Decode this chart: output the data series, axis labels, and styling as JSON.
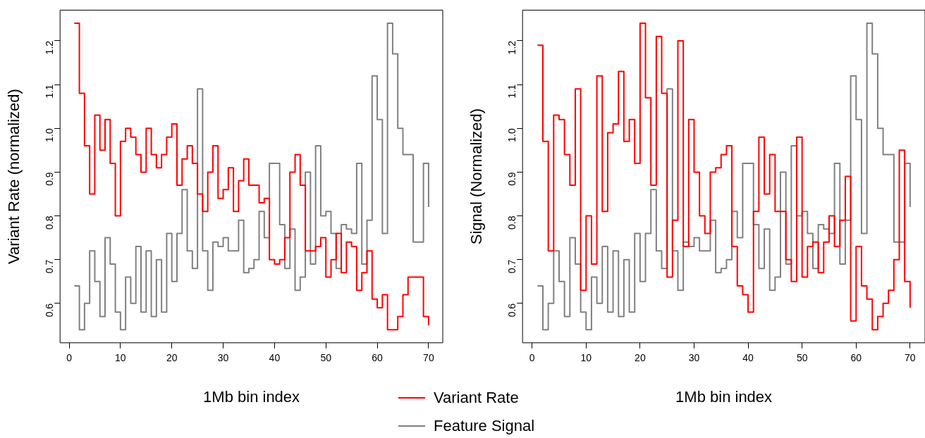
{
  "chart_data": [
    {
      "type": "step",
      "xlabel": "1Mb bin index",
      "ylabel": "Variant Rate (normalized)",
      "legend": "bottom",
      "grid": false,
      "x": [
        1,
        2,
        3,
        4,
        5,
        6,
        7,
        8,
        9,
        10,
        11,
        12,
        13,
        14,
        15,
        16,
        17,
        18,
        19,
        20,
        21,
        22,
        23,
        24,
        25,
        26,
        27,
        28,
        29,
        30,
        31,
        32,
        33,
        34,
        35,
        36,
        37,
        38,
        39,
        40,
        41,
        42,
        43,
        44,
        45,
        46,
        47,
        48,
        49,
        50,
        51,
        52,
        53,
        54,
        55,
        56,
        57,
        58,
        59,
        60,
        61,
        62,
        63,
        64,
        65,
        66,
        67,
        68,
        69,
        70
      ],
      "xlim": [
        -1.76,
        72.76
      ],
      "xticks": [
        0,
        10,
        20,
        30,
        40,
        50,
        60,
        70
      ],
      "ylim": [
        0.51,
        1.27
      ],
      "yticks": [
        0.6,
        0.7,
        0.8,
        0.9,
        {
          "value": 1,
          "label": "1.0"
        },
        1.1,
        1.2
      ],
      "series": [
        {
          "name": "Variant Rate",
          "color": "#ff0000",
          "values": [
            1.24,
            1.08,
            0.96,
            0.85,
            1.03,
            0.95,
            1.02,
            0.92,
            0.8,
            0.97,
            1.0,
            0.98,
            0.94,
            0.9,
            1.0,
            0.94,
            0.91,
            0.94,
            0.98,
            1.01,
            0.87,
            0.93,
            0.96,
            0.92,
            0.85,
            0.81,
            0.9,
            0.96,
            0.84,
            0.86,
            0.91,
            0.81,
            0.88,
            0.93,
            0.87,
            0.87,
            0.83,
            0.84,
            0.7,
            0.69,
            0.7,
            0.75,
            0.9,
            0.94,
            0.87,
            0.72,
            0.72,
            0.73,
            0.75,
            0.66,
            0.7,
            0.76,
            0.67,
            0.74,
            0.73,
            0.63,
            0.67,
            0.72,
            0.61,
            0.59,
            0.62,
            0.54,
            0.54,
            0.57,
            0.62,
            0.66,
            0.66,
            0.66,
            0.57,
            0.55
          ]
        },
        {
          "name": "Feature Signal",
          "color": "#808080",
          "values": [
            0.64,
            0.54,
            0.6,
            0.72,
            0.65,
            0.57,
            0.75,
            0.69,
            0.58,
            0.54,
            0.66,
            0.6,
            0.73,
            0.58,
            0.72,
            0.57,
            0.7,
            0.58,
            0.76,
            0.65,
            0.76,
            0.86,
            0.72,
            0.68,
            1.09,
            0.72,
            0.63,
            0.74,
            0.73,
            0.75,
            0.72,
            0.72,
            0.79,
            0.67,
            0.68,
            0.7,
            0.81,
            0.75,
            0.92,
            0.92,
            0.78,
            0.68,
            0.77,
            0.63,
            0.66,
            0.9,
            0.69,
            0.96,
            0.8,
            0.81,
            0.76,
            0.68,
            0.78,
            0.77,
            0.76,
            0.92,
            0.69,
            0.79,
            1.12,
            1.02,
            0.76,
            1.24,
            1.17,
            1.0,
            0.94,
            0.94,
            0.74,
            0.74,
            0.92,
            0.82
          ]
        }
      ]
    },
    {
      "type": "step",
      "xlabel": "1Mb bin index",
      "ylabel": "Signal (Normalized)",
      "grid": false,
      "x": [
        1,
        2,
        3,
        4,
        5,
        6,
        7,
        8,
        9,
        10,
        11,
        12,
        13,
        14,
        15,
        16,
        17,
        18,
        19,
        20,
        21,
        22,
        23,
        24,
        25,
        26,
        27,
        28,
        29,
        30,
        31,
        32,
        33,
        34,
        35,
        36,
        37,
        38,
        39,
        40,
        41,
        42,
        43,
        44,
        45,
        46,
        47,
        48,
        49,
        50,
        51,
        52,
        53,
        54,
        55,
        56,
        57,
        58,
        59,
        60,
        61,
        62,
        63,
        64,
        65,
        66,
        67,
        68,
        69,
        70
      ],
      "xlim": [
        -1.76,
        72.76
      ],
      "xticks": [
        0,
        10,
        20,
        30,
        40,
        50,
        60,
        70
      ],
      "ylim": [
        0.51,
        1.27
      ],
      "yticks": [
        0.6,
        0.7,
        0.8,
        0.9,
        {
          "value": 1,
          "label": "1.0"
        },
        1.1,
        1.2
      ],
      "series": [
        {
          "color": "#ff0000",
          "values": [
            1.19,
            0.97,
            0.72,
            1.03,
            1.02,
            0.94,
            0.87,
            1.09,
            0.63,
            0.8,
            0.69,
            1.12,
            0.81,
            0.99,
            1.01,
            1.13,
            0.97,
            1.02,
            0.92,
            1.24,
            1.07,
            0.87,
            1.21,
            1.08,
            0.66,
            0.79,
            1.2,
            0.73,
            1.02,
            0.9,
            0.8,
            0.76,
            0.9,
            0.91,
            0.94,
            0.96,
            0.73,
            0.64,
            0.62,
            0.58,
            0.81,
            0.98,
            0.85,
            0.94,
            0.81,
            0.81,
            0.7,
            0.65,
            0.98,
            0.66,
            0.73,
            0.74,
            0.67,
            0.74,
            0.8,
            0.73,
            0.79,
            0.89,
            0.56,
            0.73,
            0.64,
            0.61,
            0.54,
            0.57,
            0.6,
            0.63,
            0.7,
            0.95,
            0.65,
            0.59
          ]
        },
        {
          "color": "#808080",
          "values": [
            0.64,
            0.54,
            0.6,
            0.72,
            0.65,
            0.57,
            0.75,
            0.69,
            0.58,
            0.54,
            0.66,
            0.6,
            0.73,
            0.58,
            0.72,
            0.57,
            0.7,
            0.58,
            0.76,
            0.65,
            0.76,
            0.86,
            0.72,
            0.68,
            1.09,
            0.72,
            0.63,
            0.74,
            0.73,
            0.75,
            0.72,
            0.72,
            0.79,
            0.67,
            0.68,
            0.7,
            0.81,
            0.75,
            0.92,
            0.92,
            0.78,
            0.68,
            0.77,
            0.63,
            0.66,
            0.9,
            0.69,
            0.96,
            0.8,
            0.81,
            0.76,
            0.68,
            0.78,
            0.77,
            0.76,
            0.92,
            0.69,
            0.79,
            1.12,
            1.02,
            0.76,
            1.24,
            1.17,
            1.0,
            0.94,
            0.94,
            0.74,
            0.74,
            0.92,
            0.82
          ]
        }
      ]
    }
  ]
}
